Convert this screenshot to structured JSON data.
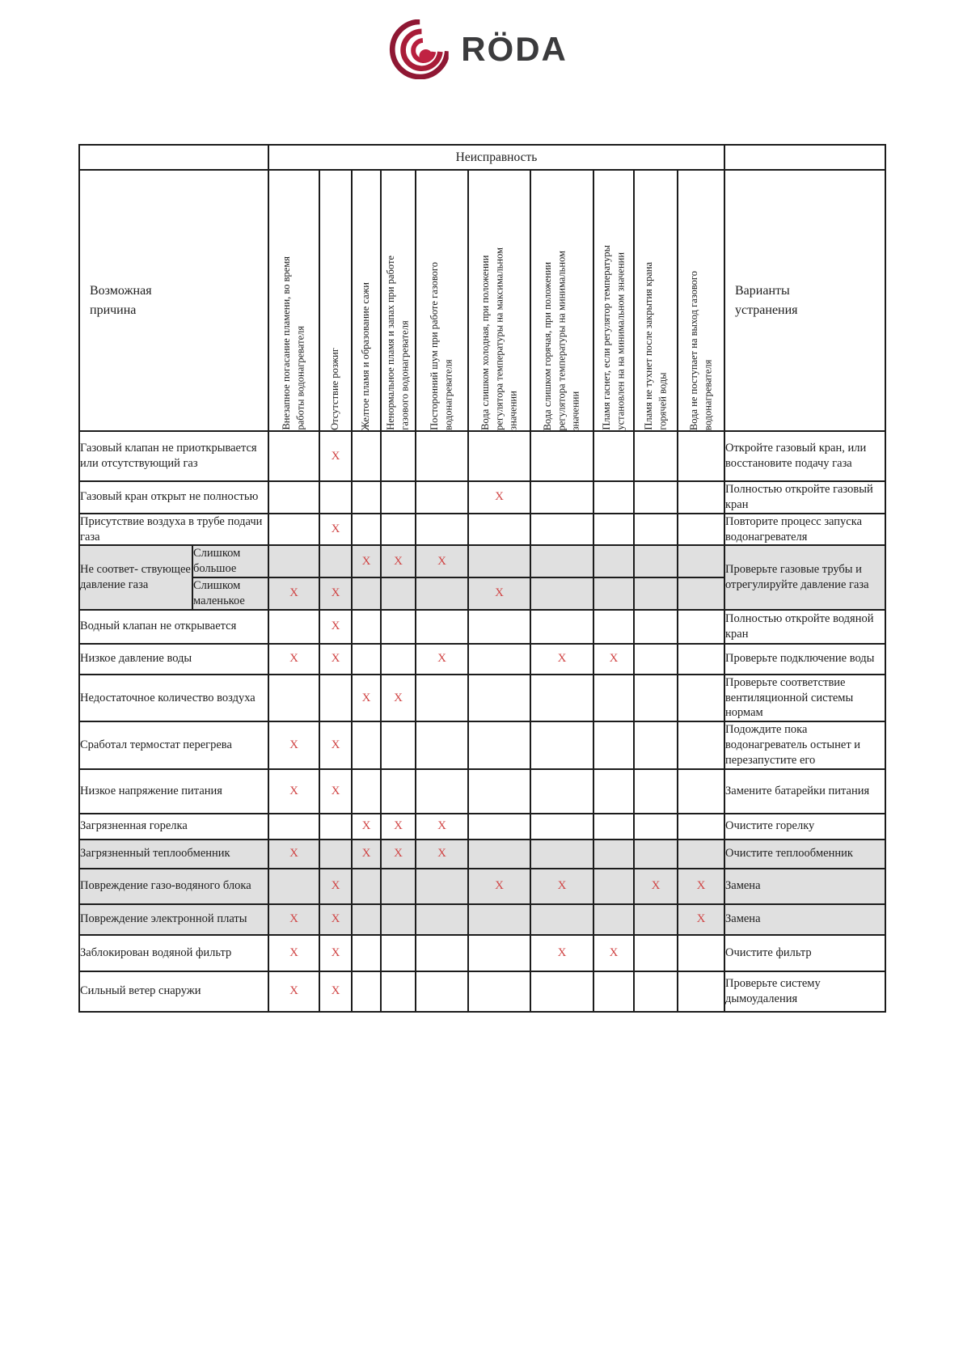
{
  "logo": {
    "brand": "RÖDA"
  },
  "table": {
    "fault_header": "Неисправность",
    "cause_header": "Возможная\nпричина",
    "solution_header": "Варианты\nустранения",
    "mark": "X",
    "columns": [
      "Внезапное погасание пламени, во время\nработы водонагревателя",
      "Отсутствие розжиг",
      "Желтое пламя и образование сажи",
      "Ненормальное пламя и запах при работе\nгазового водонагревателя",
      "Посторонний шум при работе газового\nводонагревателя",
      "Вода слишком холодная, при положении\nрегулятора температуры на максимальном\nзначении",
      "Вода слишком горячая, при положении\nрегулятора температуры  на минимальном\nзначении",
      "Пламя гаснет, если регулятор температуры\nустановлен на  на минимальном значении",
      "Пламя не тухнет после закрытия крана\nгорячей воды",
      "Вода не поступает на выход газового\nводонагревателя"
    ],
    "rows": [
      {
        "cause": "Газовый клапан не приоткрывается или отсутствующий газ",
        "marks": [
          2
        ],
        "solution": "Откройте газовый кран, или восстановите подачу газа",
        "gray": false
      },
      {
        "cause": "Газовый кран открыт не полностью",
        "marks": [
          6
        ],
        "solution": "Полностью откройте газовый кран",
        "gray": false
      },
      {
        "cause": "Присутствие воздуха в трубе подачи газа",
        "marks": [
          2
        ],
        "solution": "Повторите процесс запуска водонагревателя",
        "gray": false
      },
      {
        "cause": "Не соответ- ствующее давление газа",
        "gray": true,
        "subrows": [
          {
            "label": "Слишком большое",
            "marks": [
              3,
              4,
              5
            ]
          },
          {
            "label": "Слишком маленькое",
            "marks": [
              1,
              2,
              6
            ]
          }
        ],
        "solution": "Проверьте газовые трубы и отрегулируйте давление газа"
      },
      {
        "cause": "Водный клапан не открывается",
        "marks": [
          2
        ],
        "solution": "Полностью откройте водяной кран",
        "gray": false
      },
      {
        "cause": "Низкое давление воды",
        "marks": [
          1,
          2,
          5,
          7,
          8
        ],
        "solution": "Проверьте подключение воды",
        "gray": false
      },
      {
        "cause": "Недостаточное количество воздуха",
        "marks": [
          3,
          4
        ],
        "solution": "Проверьте соответствие вентиляционной системы нормам",
        "gray": false
      },
      {
        "cause": "Сработал термостат перегрева",
        "marks": [
          1,
          2
        ],
        "solution": "Подождите пока водонагреватель остынет и перезапустите его",
        "gray": false
      },
      {
        "cause": "Низкое напряжение питания",
        "marks": [
          1,
          2
        ],
        "solution": "Замените батарейки питания",
        "gray": false
      },
      {
        "cause": "Загрязненная горелка",
        "marks": [
          3,
          4,
          5
        ],
        "solution": "Очистите горелку",
        "gray": false
      },
      {
        "cause": "Загрязненный теплообменник",
        "marks": [
          1,
          3,
          4,
          5
        ],
        "solution": "Очистите теплообменник",
        "gray": true
      },
      {
        "cause": "Повреждение газо-водяного блока",
        "marks": [
          2,
          6,
          7,
          9,
          10
        ],
        "solution": "Замена",
        "gray": true
      },
      {
        "cause": "Повреждение электронной платы",
        "marks": [
          1,
          2,
          10
        ],
        "solution": "Замена",
        "gray": true
      },
      {
        "cause": "Заблокирован водяной фильтр",
        "marks": [
          1,
          2,
          7,
          8
        ],
        "solution": "Очистите фильтр",
        "gray": false
      },
      {
        "cause": "Сильный ветер снаружи",
        "marks": [
          1,
          2
        ],
        "solution": "Проверьте систему дымоудаления",
        "gray": false
      }
    ]
  },
  "colors": {
    "mark_red": "#d04343",
    "row_gray": "#e0e0e0",
    "logo_red": "#a81c38",
    "logo_text": "#3b3b3d",
    "border": "#1c1c1c"
  }
}
